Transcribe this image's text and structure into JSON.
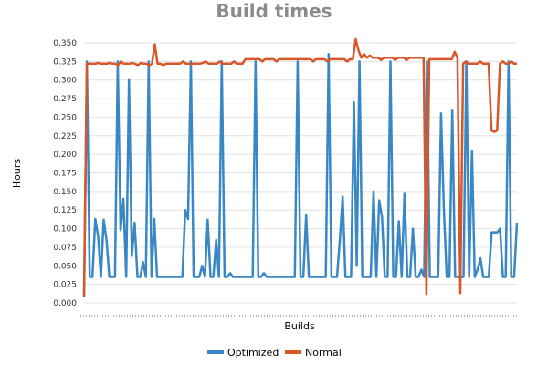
{
  "chart_data": {
    "type": "line",
    "title": "Build times",
    "xlabel": "Builds",
    "ylabel": "Hours",
    "ylim": [
      0,
      0.35
    ],
    "ytick_labels": [
      "0.000",
      "0.025",
      "0.050",
      "0.075",
      "0.100",
      "0.125",
      "0.150",
      "0.175",
      "0.200",
      "0.225",
      "0.250",
      "0.275",
      "0.300",
      "0.325",
      "0.350"
    ],
    "grid": true,
    "legend_position": "bottom",
    "series": [
      {
        "name": "Optimized",
        "color": "#3a87c6",
        "values": [
          0.01,
          0.325,
          0.035,
          0.035,
          0.113,
          0.09,
          0.035,
          0.112,
          0.085,
          0.035,
          0.035,
          0.035,
          0.325,
          0.098,
          0.14,
          0.035,
          0.3,
          0.063,
          0.108,
          0.035,
          0.035,
          0.055,
          0.035,
          0.325,
          0.035,
          0.113,
          0.035,
          0.035,
          0.035,
          0.035,
          0.035,
          0.035,
          0.035,
          0.035,
          0.035,
          0.035,
          0.125,
          0.113,
          0.325,
          0.035,
          0.035,
          0.035,
          0.05,
          0.035,
          0.112,
          0.035,
          0.035,
          0.085,
          0.035,
          0.325,
          0.035,
          0.035,
          0.04,
          0.035,
          0.035,
          0.035,
          0.035,
          0.035,
          0.035,
          0.035,
          0.035,
          0.325,
          0.035,
          0.035,
          0.04,
          0.035,
          0.035,
          0.035,
          0.035,
          0.035,
          0.035,
          0.035,
          0.035,
          0.035,
          0.035,
          0.035,
          0.325,
          0.035,
          0.035,
          0.118,
          0.035,
          0.035,
          0.035,
          0.035,
          0.035,
          0.035,
          0.035,
          0.335,
          0.035,
          0.035,
          0.035,
          0.085,
          0.143,
          0.035,
          0.035,
          0.035,
          0.27,
          0.05,
          0.325,
          0.035,
          0.035,
          0.035,
          0.035,
          0.15,
          0.035,
          0.138,
          0.115,
          0.035,
          0.035,
          0.325,
          0.035,
          0.035,
          0.11,
          0.035,
          0.148,
          0.035,
          0.035,
          0.1,
          0.035,
          0.035,
          0.045,
          0.035,
          0.325,
          0.035,
          0.035,
          0.035,
          0.035,
          0.255,
          0.125,
          0.035,
          0.035,
          0.26,
          0.035,
          0.035,
          0.035,
          0.035,
          0.325,
          0.035,
          0.205,
          0.035,
          0.045,
          0.06,
          0.035,
          0.035,
          0.035,
          0.095,
          0.095,
          0.095,
          0.1,
          0.035,
          0.035,
          0.325,
          0.035,
          0.035,
          0.108
        ]
      },
      {
        "name": "Normal",
        "color": "#d7562a",
        "values": [
          0.008,
          0.322,
          0.322,
          0.322,
          0.322,
          0.323,
          0.322,
          0.322,
          0.322,
          0.323,
          0.322,
          0.322,
          0.32,
          0.325,
          0.322,
          0.322,
          0.322,
          0.323,
          0.322,
          0.32,
          0.323,
          0.322,
          0.322,
          0.32,
          0.322,
          0.348,
          0.322,
          0.322,
          0.32,
          0.322,
          0.322,
          0.322,
          0.322,
          0.322,
          0.322,
          0.325,
          0.322,
          0.322,
          0.322,
          0.322,
          0.322,
          0.322,
          0.323,
          0.325,
          0.322,
          0.322,
          0.322,
          0.322,
          0.325,
          0.322,
          0.322,
          0.322,
          0.322,
          0.325,
          0.322,
          0.322,
          0.322,
          0.328,
          0.328,
          0.328,
          0.328,
          0.328,
          0.328,
          0.325,
          0.328,
          0.328,
          0.328,
          0.328,
          0.325,
          0.328,
          0.328,
          0.328,
          0.328,
          0.328,
          0.328,
          0.328,
          0.328,
          0.328,
          0.328,
          0.328,
          0.328,
          0.325,
          0.328,
          0.328,
          0.328,
          0.328,
          0.325,
          0.328,
          0.328,
          0.328,
          0.328,
          0.328,
          0.328,
          0.325,
          0.328,
          0.328,
          0.355,
          0.34,
          0.33,
          0.335,
          0.33,
          0.333,
          0.33,
          0.33,
          0.33,
          0.327,
          0.33,
          0.33,
          0.33,
          0.33,
          0.327,
          0.33,
          0.33,
          0.33,
          0.327,
          0.33,
          0.33,
          0.33,
          0.33,
          0.33,
          0.33,
          0.012,
          0.328,
          0.328,
          0.328,
          0.328,
          0.328,
          0.328,
          0.328,
          0.328,
          0.328,
          0.338,
          0.33,
          0.013,
          0.322,
          0.325,
          0.322,
          0.322,
          0.322,
          0.322,
          0.325,
          0.322,
          0.322,
          0.322,
          0.232,
          0.23,
          0.232,
          0.322,
          0.325,
          0.322,
          0.322,
          0.325,
          0.322,
          0.322
        ]
      }
    ]
  }
}
